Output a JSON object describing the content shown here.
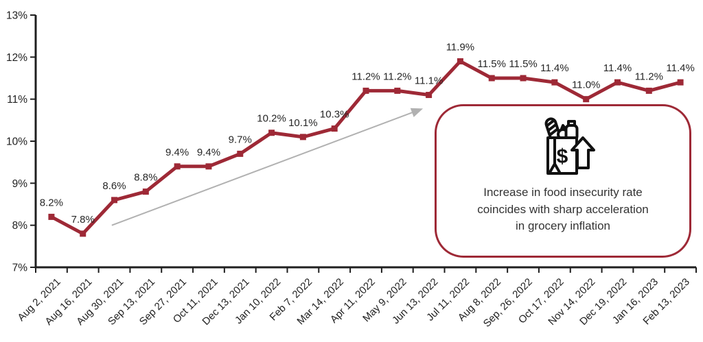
{
  "chart_data": {
    "type": "line",
    "title": "",
    "xlabel": "",
    "ylabel": "",
    "categories": [
      "Aug 2, 2021",
      "Aug 16, 2021",
      "Aug 30, 2021",
      "Sep 13, 2021",
      "Sep 27, 2021",
      "Oct 11, 2021",
      "Dec 13, 2021",
      "Jan 10, 2022",
      "Feb 7, 2022",
      "Mar 14, 2022",
      "Apr 11, 2022",
      "May 9, 2022",
      "Jun 13, 2022",
      "Jul 11, 2022",
      "Aug 8, 2022",
      "Sep, 26, 2022",
      "Oct 17, 2022",
      "Nov 14, 2022",
      "Dec 19, 2022",
      "Jan 16, 2023",
      "Feb 13, 2023"
    ],
    "values": [
      8.2,
      7.8,
      8.6,
      8.8,
      9.4,
      9.4,
      9.7,
      10.2,
      10.1,
      10.3,
      11.2,
      11.2,
      11.1,
      11.9,
      11.5,
      11.5,
      11.4,
      11.0,
      11.4,
      11.2,
      11.4
    ],
    "data_labels": [
      "8.2%",
      "7.8%",
      "8.6%",
      "8.8%",
      "9.4%",
      "9.4%",
      "9.7%",
      "10.2%",
      "10.1%",
      "10.3%",
      "11.2%",
      "11.2%",
      "11.1%",
      "11.9%",
      "11.5%",
      "11.5%",
      "11.4%",
      "11.0%",
      "11.4%",
      "11.2%",
      "11.4%"
    ],
    "ylim": [
      7,
      13
    ],
    "ytick_labels": [
      "7%",
      "8%",
      "9%",
      "10%",
      "11%",
      "12%",
      "13%"
    ],
    "grid": false,
    "legend": "none",
    "line_color": "#9e2936",
    "marker": "square",
    "axis_color": "#1f1f1f",
    "tick_label_color": "#1f1f1f",
    "data_label_color": "#262626",
    "trend_arrow": {
      "color": "#b1b1b1",
      "from": {
        "i": 1.92,
        "v": 8.0
      },
      "to": {
        "i": 11.61,
        "v": 10.72
      }
    }
  },
  "callout": {
    "lines": [
      "Increase in food insecurity rate",
      "coincides with sharp acceleration",
      "in grocery inflation"
    ],
    "border_color": "#9e2936",
    "icon": "grocery-bag-price-up-icon",
    "dollar_sign": "$"
  }
}
